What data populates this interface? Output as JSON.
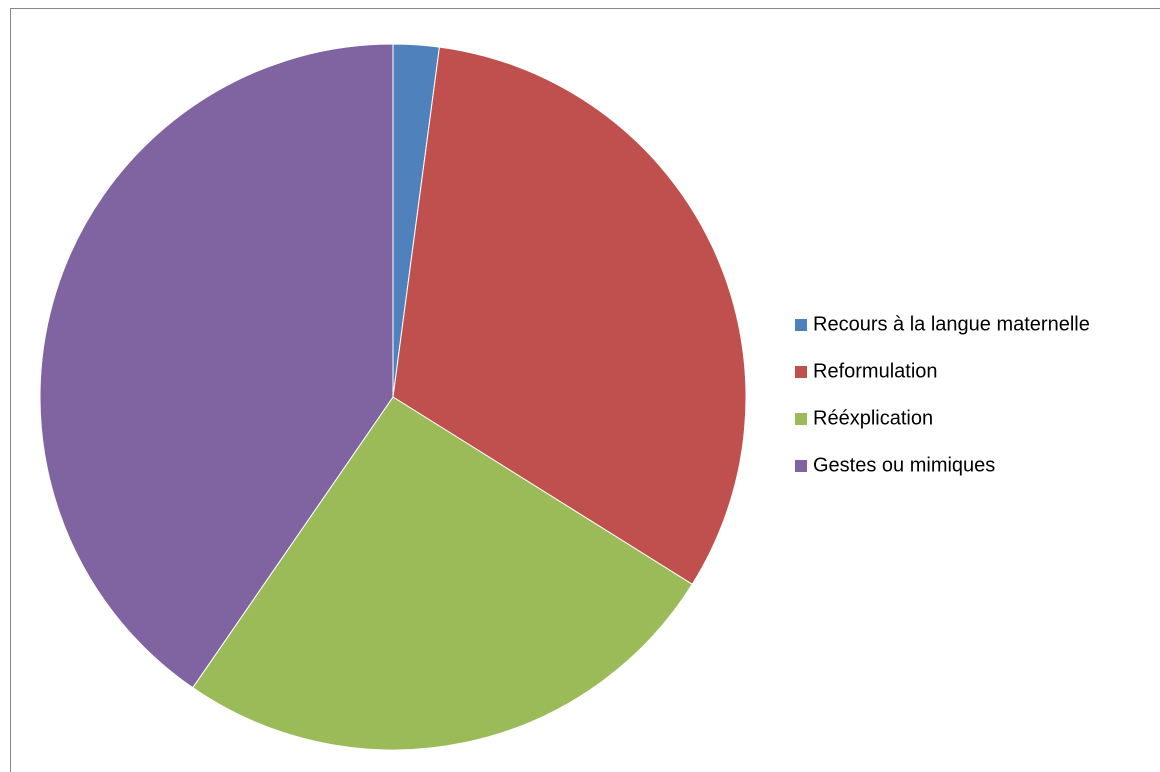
{
  "chart_data": {
    "type": "pie",
    "categories": [
      "Recours à la langue maternelle",
      "Reformulation",
      "Rééxplication",
      "Gestes ou mimiques"
    ],
    "values": [
      2.1,
      31.8,
      25.7,
      40.4
    ],
    "colors": [
      "#4f81bd",
      "#c0504d",
      "#9bbb59",
      "#8064a2"
    ],
    "legend": "right"
  }
}
